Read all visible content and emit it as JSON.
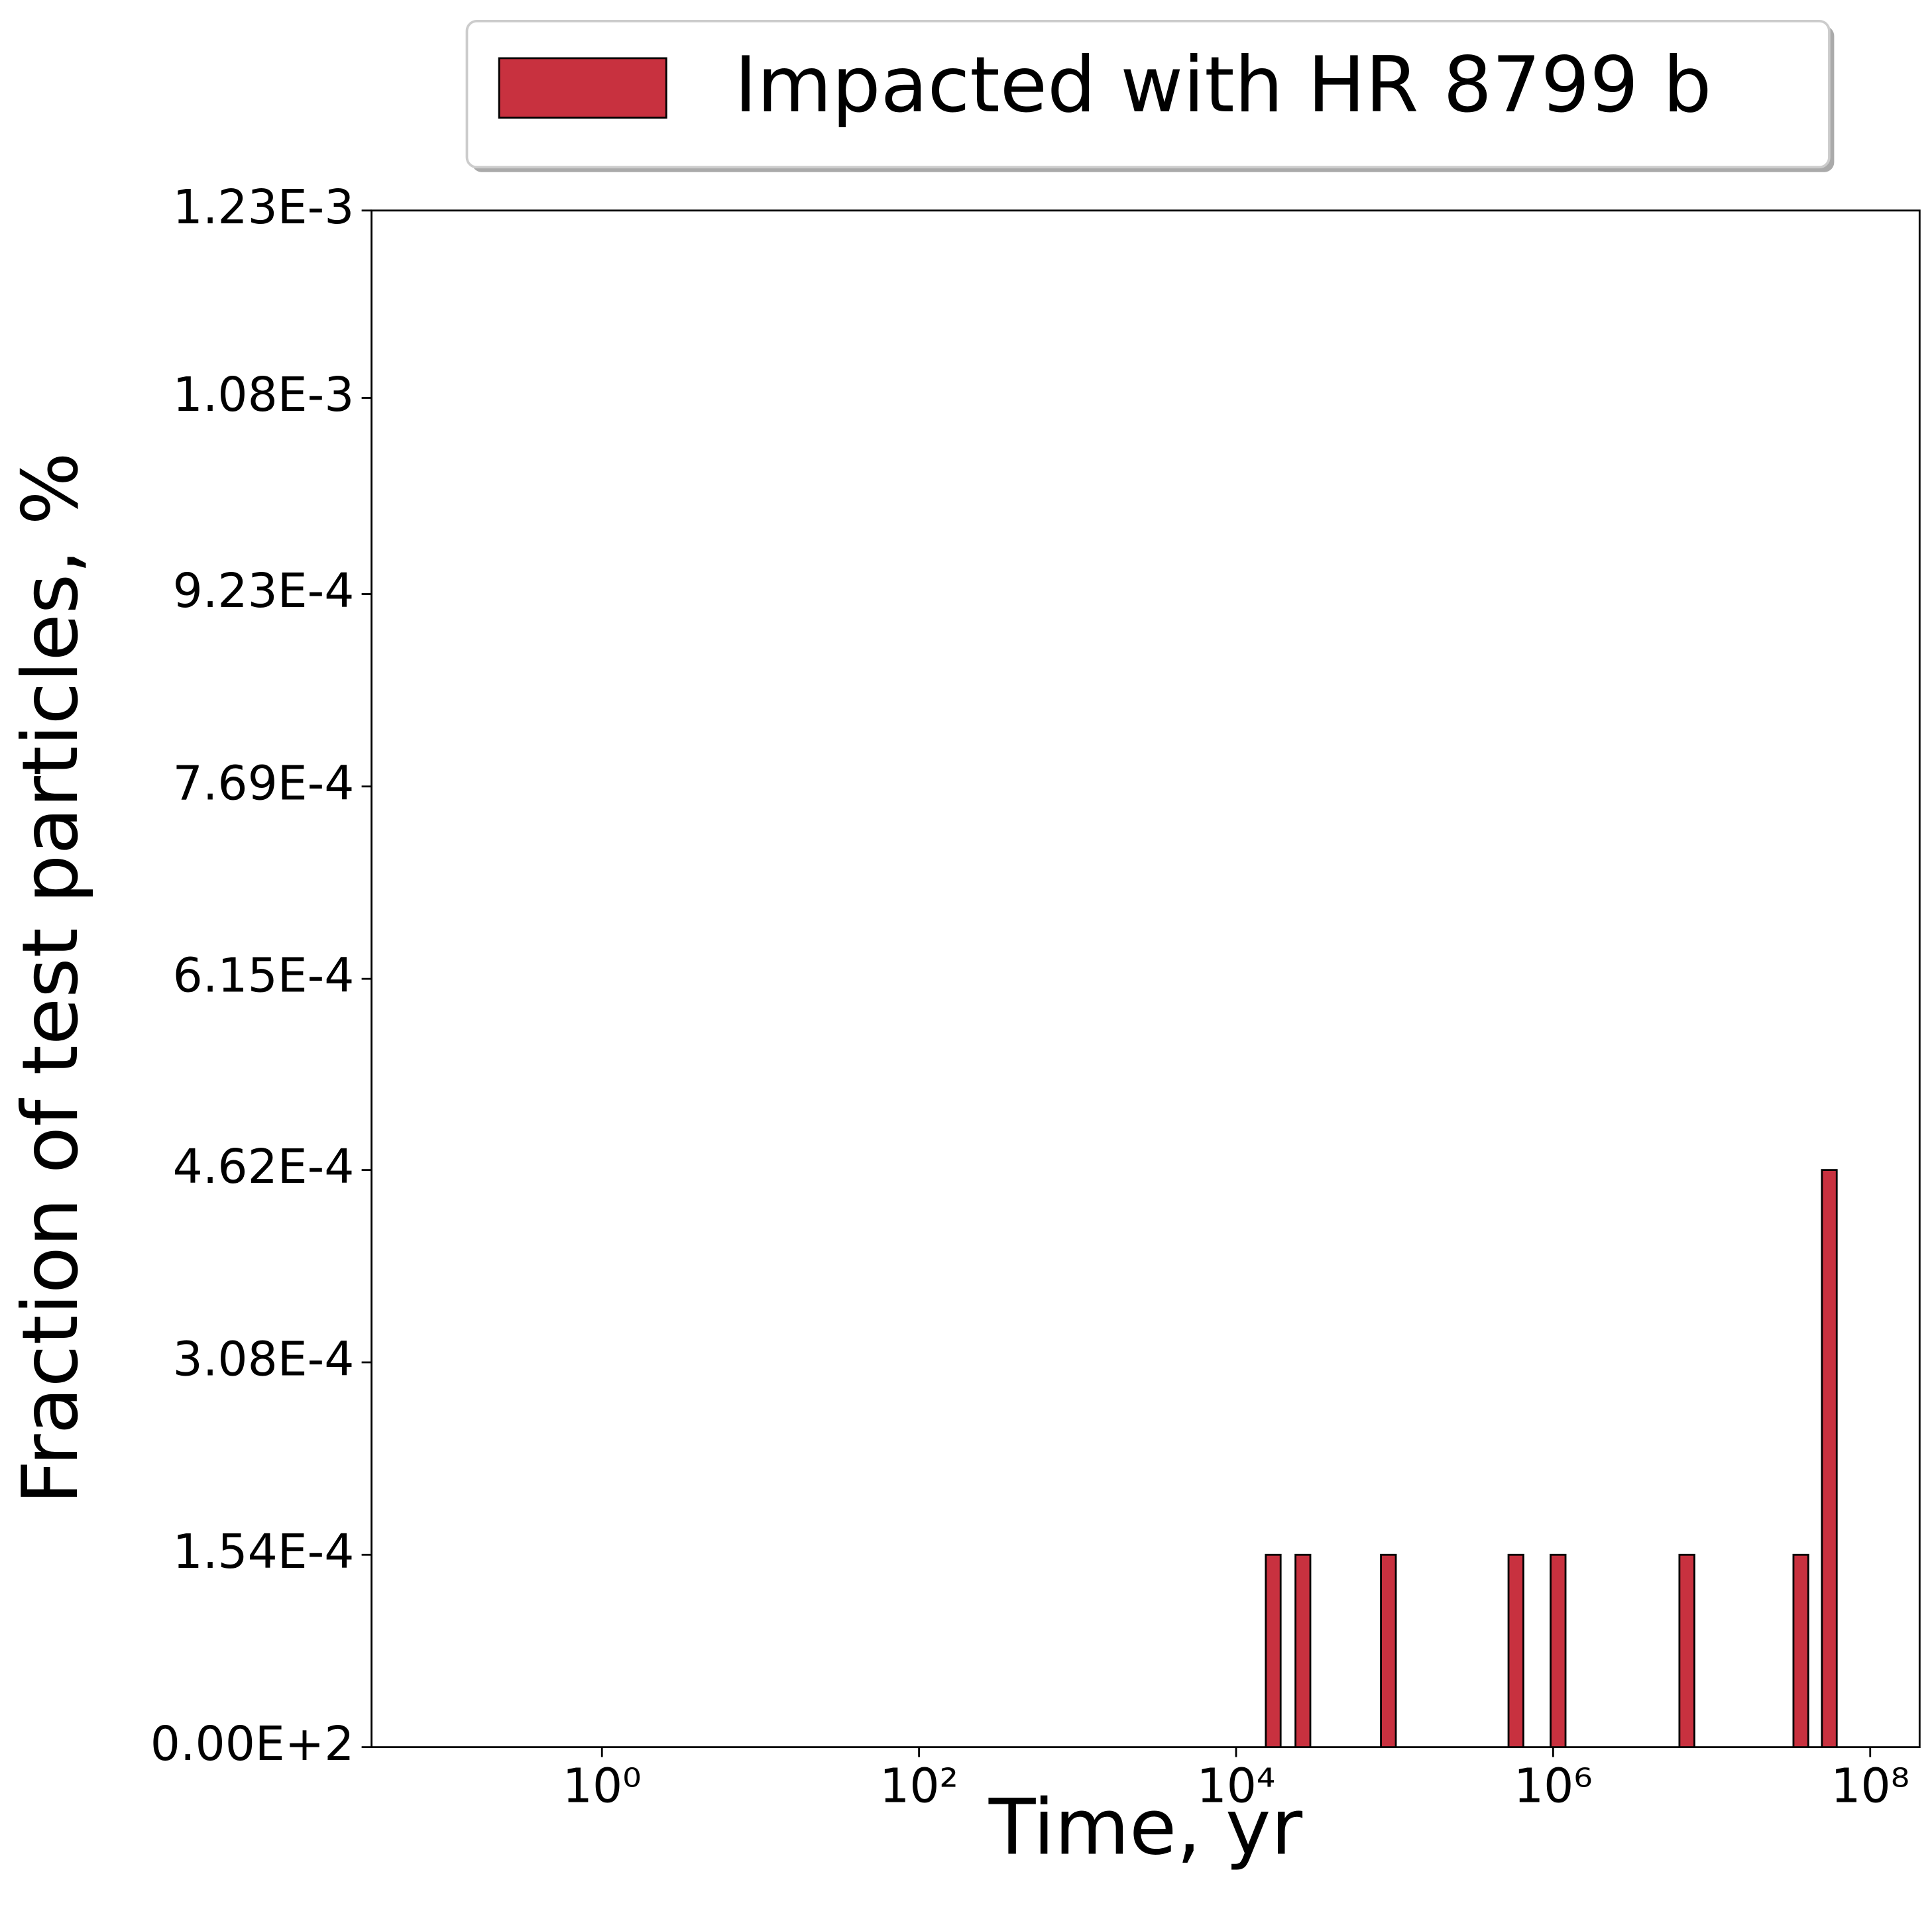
{
  "chart_data": {
    "type": "histogram",
    "xlabel": "Time, yr",
    "ylabel": "Fraction of test particles, %",
    "xscale": "log",
    "xlim": [
      0.0352,
      205000000
    ],
    "xticks": [
      {
        "value": 1,
        "label": "10⁰"
      },
      {
        "value": 100,
        "label": "10²"
      },
      {
        "value": 10000,
        "label": "10⁴"
      },
      {
        "value": 1000000,
        "label": "10⁶"
      },
      {
        "value": 100000000,
        "label": "10⁸"
      }
    ],
    "ylim": [
      0,
      0.00123
    ],
    "yticks": [
      {
        "value": 0,
        "label": "0.00E+2"
      },
      {
        "value": 0.000154,
        "label": "1.54E-4"
      },
      {
        "value": 0.000308,
        "label": "3.08E-4"
      },
      {
        "value": 0.000462,
        "label": "4.62E-4"
      },
      {
        "value": 0.000615,
        "label": "6.15E-4"
      },
      {
        "value": 0.000769,
        "label": "7.69E-4"
      },
      {
        "value": 0.000923,
        "label": "9.23E-4"
      },
      {
        "value": 0.00108,
        "label": "1.08E-3"
      },
      {
        "value": 0.00123,
        "label": "1.23E-3"
      }
    ],
    "legend": "upper center outside",
    "bins": [
      0.1,
      15400,
      19100,
      23700,
      29400,
      82000,
      101800,
      523000,
      649000,
      964000,
      1197000,
      6260000,
      7780000,
      32800000,
      40700000,
      49600000,
      61500000,
      73600000
    ],
    "series": [
      {
        "name": "Impacted with HR 8799 b",
        "color": "#c8313f",
        "values": [
          0,
          0.000154,
          0,
          0.000154,
          0,
          0.000154,
          0,
          0.000154,
          0,
          0.000154,
          0,
          0.000154,
          0,
          0.000154,
          0,
          0.000462,
          0
        ]
      }
    ]
  }
}
